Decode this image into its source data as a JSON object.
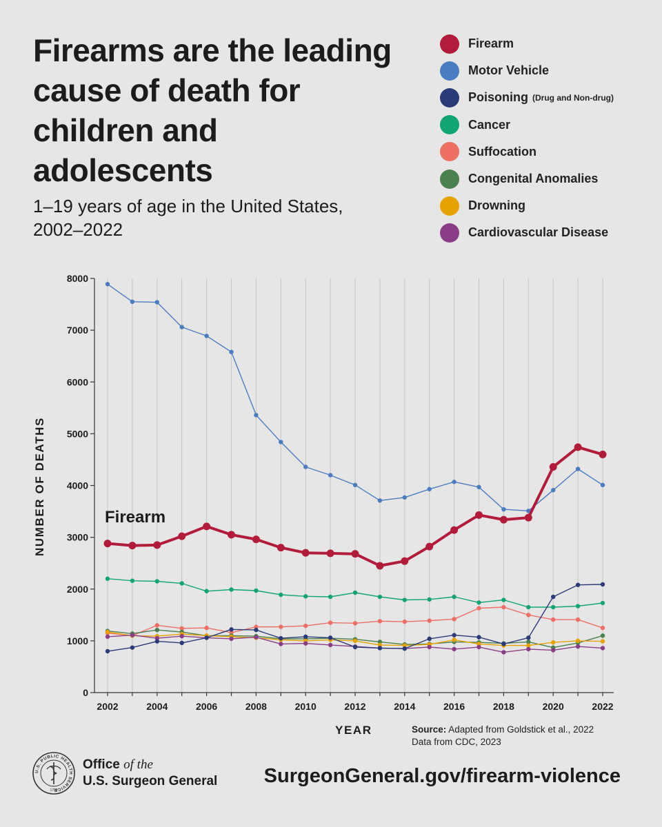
{
  "header": {
    "title": "Firearms are the leading cause of death for children and adolescents",
    "subtitle": "1–19 years of age in the United States, 2002–2022"
  },
  "legend": [
    {
      "label": "Firearm",
      "note": "",
      "color": "#b31b3a"
    },
    {
      "label": "Motor Vehicle",
      "note": "",
      "color": "#4a7cc1"
    },
    {
      "label": "Poisoning",
      "note": "(Drug and Non-drug)",
      "color": "#2b3a78"
    },
    {
      "label": "Cancer",
      "note": "",
      "color": "#12a571"
    },
    {
      "label": "Suffocation",
      "note": "",
      "color": "#ee6e64"
    },
    {
      "label": "Congenital Anomalies",
      "note": "",
      "color": "#4a7f4e"
    },
    {
      "label": "Drowning",
      "note": "",
      "color": "#e8a200"
    },
    {
      "label": "Cardiovascular Disease",
      "note": "",
      "color": "#8a3d86"
    }
  ],
  "chart_data": {
    "type": "line",
    "title": "Firearms are the leading cause of death for children and adolescents",
    "xlabel": "YEAR",
    "ylabel": "NUMBER OF DEATHS",
    "ylim": [
      0,
      8000
    ],
    "yticks": [
      0,
      1000,
      2000,
      3000,
      4000,
      5000,
      6000,
      7000,
      8000
    ],
    "xticks": [
      2002,
      2004,
      2006,
      2008,
      2010,
      2012,
      2014,
      2016,
      2018,
      2020,
      2022
    ],
    "x": [
      2002,
      2003,
      2004,
      2005,
      2006,
      2007,
      2008,
      2009,
      2010,
      2011,
      2012,
      2013,
      2014,
      2015,
      2016,
      2017,
      2018,
      2019,
      2020,
      2021,
      2022
    ],
    "annotation": "Firearm",
    "series": [
      {
        "name": "Motor Vehicle",
        "color": "#4a7cc1",
        "values": [
          7890,
          7550,
          7540,
          7060,
          6890,
          6580,
          5360,
          4840,
          4360,
          4200,
          4010,
          3710,
          3770,
          3930,
          4070,
          3970,
          3540,
          3510,
          3910,
          4320,
          4010
        ]
      },
      {
        "name": "Cancer",
        "color": "#12a571",
        "values": [
          2200,
          2160,
          2150,
          2110,
          1960,
          1990,
          1970,
          1890,
          1860,
          1850,
          1930,
          1850,
          1790,
          1800,
          1850,
          1740,
          1790,
          1650,
          1650,
          1670,
          1730
        ]
      },
      {
        "name": "Suffocation",
        "color": "#ee6e64",
        "values": [
          1150,
          1100,
          1300,
          1240,
          1250,
          1160,
          1270,
          1270,
          1290,
          1350,
          1340,
          1380,
          1370,
          1390,
          1420,
          1630,
          1650,
          1500,
          1410,
          1410,
          1250
        ]
      },
      {
        "name": "Congenital Anomalies",
        "color": "#4a7f4e",
        "values": [
          1190,
          1140,
          1210,
          1170,
          1100,
          1100,
          1090,
          1040,
          1040,
          1050,
          1030,
          980,
          930,
          940,
          980,
          970,
          950,
          980,
          870,
          960,
          1100
        ]
      },
      {
        "name": "Drowning",
        "color": "#e8a200",
        "values": [
          1170,
          1100,
          1090,
          1130,
          1100,
          1080,
          1060,
          1020,
          1000,
          1020,
          1000,
          920,
          910,
          930,
          1020,
          940,
          910,
          910,
          970,
          1000,
          990
        ]
      },
      {
        "name": "Cardiovascular Disease",
        "color": "#8a3d86",
        "values": [
          1080,
          1110,
          1050,
          1090,
          1060,
          1040,
          1070,
          940,
          950,
          920,
          890,
          860,
          850,
          880,
          840,
          880,
          780,
          840,
          820,
          890,
          860
        ]
      },
      {
        "name": "Poisoning",
        "color": "#2b3a78",
        "values": [
          800,
          870,
          990,
          960,
          1060,
          1220,
          1210,
          1050,
          1080,
          1060,
          880,
          860,
          850,
          1040,
          1110,
          1070,
          940,
          1060,
          1850,
          2080,
          2090
        ]
      },
      {
        "name": "Firearm",
        "color": "#b31b3a",
        "values": [
          2880,
          2840,
          2850,
          3020,
          3210,
          3050,
          2960,
          2800,
          2700,
          2690,
          2680,
          2450,
          2540,
          2820,
          3140,
          3430,
          3340,
          3380,
          4360,
          4740,
          4600
        ]
      }
    ]
  },
  "footer": {
    "xaxis_title": "YEAR",
    "source_label": "Source:",
    "source_text": "Adapted from Goldstick et al., 2022",
    "source_line2": "Data from CDC, 2023",
    "office_line1_a": "Office",
    "office_line1_b": "of the",
    "office_line2": "U.S. Surgeon General",
    "url": "SurgeonGeneral.gov/firearm-violence",
    "seal_text": "U.S. PUBLIC HEALTH SERVICE",
    "seal_year": "1798"
  }
}
